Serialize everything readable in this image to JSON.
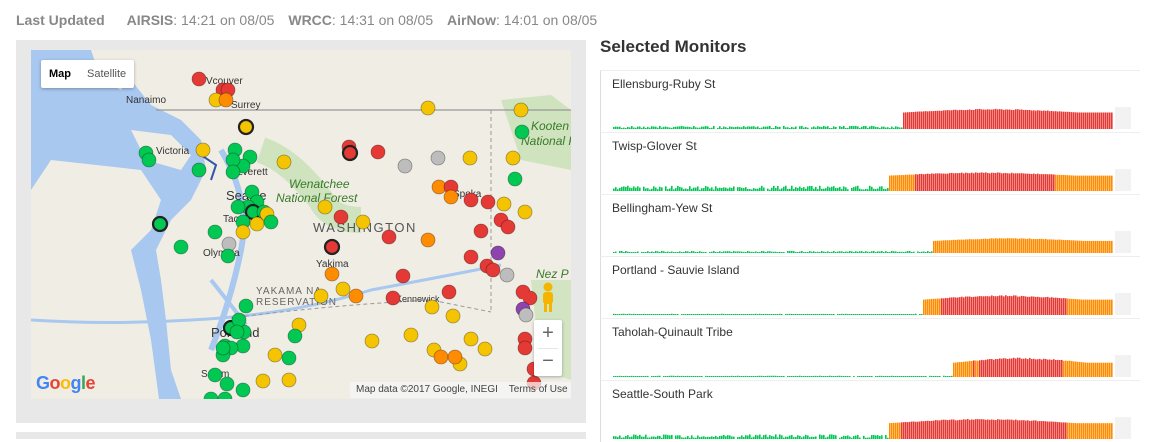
{
  "header": {
    "last_updated_label": "Last Updated",
    "sources": [
      {
        "name": "AIRSIS",
        "value": ": 14:21 on 08/05"
      },
      {
        "name": "WRCC",
        "value": ": 14:31 on 08/05"
      },
      {
        "name": "AirNow",
        "value": ": 14:01 on 08/05"
      }
    ]
  },
  "map": {
    "type_buttons": {
      "map": "Map",
      "satellite": "Satellite"
    },
    "labels": {
      "vancouver": "Vcouver",
      "surrey": "Surrey",
      "nanaimo": "Nanaimo",
      "victoria": "Victoria",
      "everett": "Everett",
      "seattle": "Seattle",
      "tacoma": "Tacoma",
      "olympia": "Olympia",
      "wenatchee": "Wenatchee",
      "national_forest": "National Forest",
      "washington": "WASHINGTON",
      "spokane": "Spoka",
      "yakima": "Yakima",
      "yakama": "YAKAMA NA",
      "reservation": "RESERVATION",
      "kennewick": "Kennewick",
      "portland": "Portland",
      "salem": "Salem",
      "kootenai": "Kooten",
      "kootenai_nf": "National Fo",
      "nez_perce": "Nez P"
    },
    "zoom_in": "+",
    "zoom_out": "−",
    "google_logo": "Google",
    "attribution": "Map data ©2017 Google, INEGI",
    "terms": "Terms of Use",
    "colors": {
      "good": "#00c853",
      "moderate": "#f5c400",
      "usg": "#ff8c00",
      "unhealthy": "#e53935",
      "very_unhealthy": "#8e44ad",
      "offline": "#bdbdbd",
      "water": "#a8c8f0",
      "land": "#f0ede5",
      "forest": "#c5e0b4"
    }
  },
  "monitors_panel": {
    "title": "Selected Monitors",
    "monitors": [
      {
        "name": "Ellensburg-Ruby St"
      },
      {
        "name": "Twisp-Glover St"
      },
      {
        "name": "Bellingham-Yew St"
      },
      {
        "name": "Portland - Sauvie Island"
      },
      {
        "name": "Taholah-Quinault Tribe"
      },
      {
        "name": "Seattle-South Park"
      }
    ]
  }
}
